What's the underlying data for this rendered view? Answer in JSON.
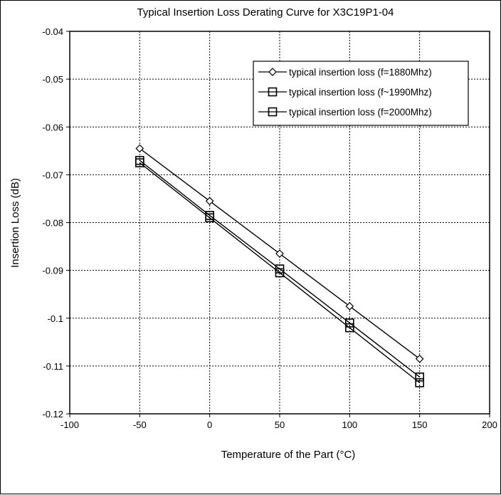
{
  "chart_data": {
    "type": "line",
    "title": "Typical Insertion Loss Derating Curve for X3C19P1-04",
    "xlabel": "Temperature of the Part (°C)",
    "ylabel": "Insertion Loss (dB)",
    "x": [
      -50,
      0,
      50,
      100,
      150
    ],
    "xlim": [
      -100,
      200
    ],
    "ylim": [
      -0.12,
      -0.04
    ],
    "xticks": [
      "-100",
      "-50",
      "0",
      "50",
      "100",
      "150",
      "200"
    ],
    "yticks": [
      "-0.04",
      "-0.05",
      "-0.06",
      "-0.07",
      "-0.08",
      "-0.09",
      "-0.1",
      "-0.11",
      "-0.12"
    ],
    "grid": true,
    "legend_position": "top-right",
    "series": [
      {
        "name": "typical insertion loss (f=1880Mhz)",
        "marker": "diamond",
        "values": [
          -0.0645,
          -0.0755,
          -0.0865,
          -0.0975,
          -0.1085
        ]
      },
      {
        "name": "typical insertion loss (f~1990Mhz)",
        "marker": "square",
        "values": [
          -0.067,
          -0.0785,
          -0.0897,
          -0.101,
          -0.1123
        ]
      },
      {
        "name": "typical insertion loss (f=2000Mhz)",
        "marker": "square",
        "values": [
          -0.0675,
          -0.079,
          -0.0905,
          -0.102,
          -0.1135
        ]
      }
    ]
  }
}
